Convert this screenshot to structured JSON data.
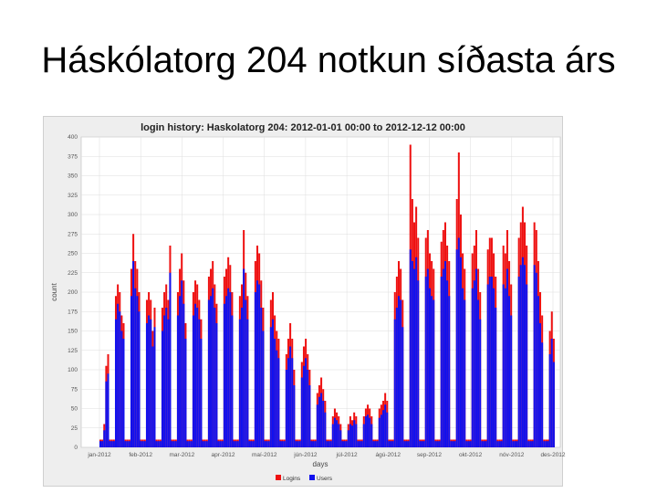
{
  "slide": {
    "title": "Háskólatorg 204 notkun síðasta árs"
  },
  "colors": {
    "logins": "#ee1111",
    "users": "#1111ee",
    "plot_bg": "#ffffff",
    "frame_bg": "#eeeeee",
    "grid": "#dddddd"
  },
  "chart_data": {
    "type": "bar",
    "title": "login history: Haskolatorg 204: 2012-01-01 00:00 to 2012-12-12 00:00",
    "xlabel": "days",
    "ylabel": "count",
    "ylim": [
      0,
      400
    ],
    "grid": true,
    "legend_position": "bottom",
    "yticks": [
      0,
      25,
      50,
      75,
      100,
      125,
      150,
      175,
      200,
      225,
      250,
      275,
      300,
      325,
      350,
      375,
      400
    ],
    "x_tick_labels": [
      "jan-2012",
      "feb-2012",
      "mar-2012",
      "apr-2012",
      "maí-2012",
      "jún-2012",
      "júl-2012",
      "ágú-2012",
      "sep-2012",
      "okt-2012",
      "nóv-2012",
      "des-2012"
    ],
    "series": [
      {
        "name": "Logins",
        "values": [
          10,
          10,
          30,
          105,
          120,
          10,
          10,
          10,
          195,
          210,
          200,
          170,
          160,
          10,
          10,
          10,
          230,
          275,
          240,
          230,
          200,
          10,
          10,
          10,
          190,
          200,
          190,
          150,
          180,
          10,
          10,
          10,
          180,
          200,
          210,
          190,
          260,
          10,
          10,
          10,
          200,
          230,
          250,
          215,
          160,
          10,
          10,
          10,
          200,
          215,
          210,
          190,
          165,
          10,
          10,
          10,
          220,
          230,
          240,
          210,
          185,
          10,
          10,
          10,
          220,
          230,
          245,
          235,
          200,
          10,
          10,
          10,
          195,
          210,
          280,
          225,
          195,
          10,
          10,
          10,
          240,
          260,
          250,
          215,
          180,
          10,
          10,
          10,
          190,
          200,
          170,
          150,
          140,
          10,
          10,
          10,
          120,
          140,
          160,
          140,
          100,
          10,
          10,
          10,
          110,
          130,
          140,
          120,
          100,
          10,
          10,
          10,
          70,
          80,
          90,
          75,
          60,
          10,
          10,
          10,
          40,
          50,
          45,
          40,
          30,
          10,
          10,
          10,
          30,
          40,
          35,
          45,
          40,
          10,
          10,
          10,
          40,
          50,
          55,
          50,
          40,
          10,
          10,
          10,
          50,
          55,
          60,
          70,
          60,
          10,
          10,
          10,
          200,
          220,
          240,
          230,
          190,
          10,
          10,
          10,
          390,
          320,
          290,
          310,
          270,
          10,
          10,
          10,
          270,
          280,
          250,
          240,
          230,
          10,
          10,
          10,
          265,
          280,
          290,
          260,
          240,
          10,
          10,
          10,
          320,
          380,
          300,
          250,
          230,
          10,
          10,
          10,
          250,
          260,
          280,
          230,
          200,
          10,
          10,
          10,
          255,
          270,
          270,
          250,
          220,
          10,
          10,
          10,
          260,
          250,
          280,
          240,
          210,
          10,
          10,
          10,
          270,
          290,
          310,
          290,
          260,
          10,
          10,
          10,
          290,
          280,
          240,
          200,
          170,
          10,
          10,
          10,
          150,
          175,
          140
        ],
        "peaks": {}
      },
      {
        "name": "Users",
        "values": [
          8,
          8,
          22,
          85,
          95,
          8,
          8,
          8,
          165,
          185,
          175,
          150,
          140,
          8,
          8,
          8,
          195,
          240,
          205,
          195,
          175,
          8,
          8,
          8,
          160,
          170,
          165,
          130,
          155,
          8,
          8,
          8,
          150,
          170,
          180,
          165,
          225,
          8,
          8,
          8,
          170,
          195,
          215,
          185,
          140,
          8,
          8,
          8,
          170,
          185,
          180,
          165,
          140,
          8,
          8,
          8,
          190,
          195,
          205,
          180,
          160,
          8,
          8,
          8,
          185,
          195,
          205,
          200,
          170,
          8,
          8,
          8,
          165,
          180,
          230,
          190,
          165,
          8,
          8,
          8,
          200,
          215,
          210,
          180,
          150,
          8,
          8,
          8,
          155,
          165,
          140,
          125,
          115,
          8,
          8,
          8,
          100,
          115,
          130,
          115,
          80,
          8,
          8,
          8,
          90,
          105,
          115,
          100,
          80,
          8,
          8,
          8,
          55,
          65,
          70,
          60,
          45,
          8,
          8,
          8,
          30,
          38,
          35,
          30,
          22,
          8,
          8,
          8,
          22,
          30,
          28,
          35,
          30,
          8,
          8,
          8,
          30,
          40,
          42,
          38,
          30,
          8,
          8,
          8,
          38,
          42,
          48,
          55,
          45,
          8,
          8,
          8,
          165,
          180,
          195,
          190,
          155,
          8,
          8,
          8,
          255,
          240,
          230,
          245,
          215,
          8,
          8,
          8,
          220,
          230,
          205,
          195,
          190,
          8,
          8,
          8,
          220,
          230,
          240,
          215,
          195,
          8,
          8,
          8,
          255,
          270,
          245,
          205,
          190,
          8,
          8,
          8,
          205,
          215,
          230,
          190,
          165,
          8,
          8,
          8,
          210,
          220,
          220,
          205,
          180,
          8,
          8,
          8,
          210,
          205,
          230,
          195,
          170,
          8,
          8,
          8,
          220,
          235,
          245,
          235,
          210,
          8,
          8,
          8,
          235,
          225,
          195,
          160,
          135,
          8,
          8,
          8,
          120,
          140,
          110
        ]
      }
    ]
  }
}
